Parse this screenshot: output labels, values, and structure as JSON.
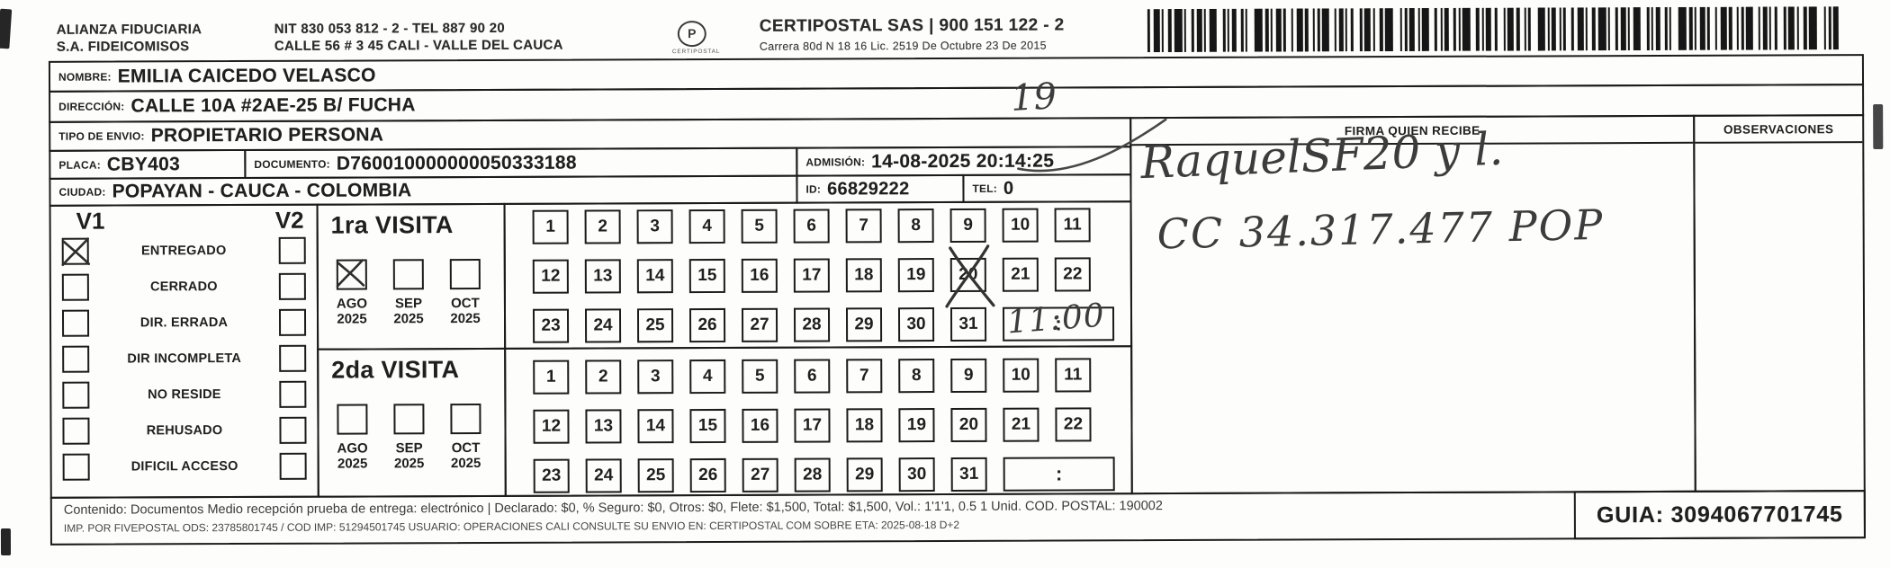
{
  "header": {
    "company": [
      "ALIANZA FIDUCIARIA",
      "S.A. FIDEICOMISOS"
    ],
    "contact": [
      "NIT 830 053 812 - 2 - TEL 887 90 20",
      "CALLE 56 # 3 45  CALI  -  VALLE DEL CAUCA"
    ],
    "logo": {
      "letter": "P",
      "caption": "CERTIPOSTAL"
    },
    "certipostal": [
      "CERTIPOSTAL SAS | 900 151 122 - 2",
      "Carrera 80d N 18 16  Lic. 2519 De Octubre 23 De 2015"
    ]
  },
  "fields": {
    "nombre": {
      "label": "NOMBRE:",
      "value": "EMILIA CAICEDO VELASCO"
    },
    "direccion": {
      "label": "DIRECCIÓN:",
      "value": "CALLE 10A #2AE-25 B/ FUCHA",
      "handwritten": "19"
    },
    "tipo_envio": {
      "label": "TIPO DE ENVIO:",
      "value": "PROPIETARIO PERSONA"
    },
    "placa": {
      "label": "PLACA:",
      "value": "CBY403"
    },
    "documento": {
      "label": "DOCUMENTO:",
      "value": "D760010000000050333188"
    },
    "admision": {
      "label": "ADMISIÓN:",
      "value": "14-08-2025 20:14:25"
    },
    "ciudad": {
      "label": "CIUDAD:",
      "value": "POPAYAN - CAUCA - COLOMBIA"
    },
    "id": {
      "label": "ID:",
      "value": "66829222"
    },
    "tel": {
      "label": "TEL:",
      "value": "0"
    }
  },
  "status": {
    "v1_header": "V1",
    "v2_header": "V2",
    "options": [
      {
        "label": "ENTREGADO",
        "v1": true,
        "v2": false
      },
      {
        "label": "CERRADO",
        "v1": false,
        "v2": false
      },
      {
        "label": "DIR. ERRADA",
        "v1": false,
        "v2": false
      },
      {
        "label": "DIR INCOMPLETA",
        "v1": false,
        "v2": false
      },
      {
        "label": "NO RESIDE",
        "v1": false,
        "v2": false
      },
      {
        "label": "REHUSADO",
        "v1": false,
        "v2": false
      },
      {
        "label": "DIFICIL ACCESO",
        "v1": false,
        "v2": false
      }
    ]
  },
  "visits": [
    {
      "title": "1ra VISITA",
      "months": [
        {
          "month": "AGO",
          "year": "2025",
          "checked": true
        },
        {
          "month": "SEP",
          "year": "2025",
          "checked": false
        },
        {
          "month": "OCT",
          "year": "2025",
          "checked": false
        }
      ],
      "days": [
        1,
        2,
        3,
        4,
        5,
        6,
        7,
        8,
        9,
        10,
        11,
        12,
        13,
        14,
        15,
        16,
        17,
        18,
        19,
        20,
        21,
        22,
        23,
        24,
        25,
        26,
        27,
        28,
        29,
        30,
        31
      ],
      "crossed_day": 20,
      "time": {
        "printed_separator": ":",
        "handwritten": "11:00"
      }
    },
    {
      "title": "2da VISITA",
      "months": [
        {
          "month": "AGO",
          "year": "2025",
          "checked": false
        },
        {
          "month": "SEP",
          "year": "2025",
          "checked": false
        },
        {
          "month": "OCT",
          "year": "2025",
          "checked": false
        }
      ],
      "days": [
        1,
        2,
        3,
        4,
        5,
        6,
        7,
        8,
        9,
        10,
        11,
        12,
        13,
        14,
        15,
        16,
        17,
        18,
        19,
        20,
        21,
        22,
        23,
        24,
        25,
        26,
        27,
        28,
        29,
        30,
        31
      ],
      "crossed_day": null,
      "time": {
        "printed_separator": ":",
        "handwritten": ""
      }
    }
  ],
  "signature": {
    "firma_header": "FIRMA QUIEN RECIBE",
    "observaciones_header": "OBSERVACIONES",
    "lines": [
      "RaquelSF20 y l.",
      "CC 34.317.477 POP"
    ]
  },
  "footer": {
    "line1": "Contenido: Documentos Medio recepción prueba de entrega: electrónico | Declarado: $0, % Seguro: $0, Otros: $0, Flete: $1,500, Total: $1,500, Vol.: 1'1'1, 0.5  1 Unid. COD. POSTAL: 190002",
    "line2": "IMP. POR FIVEPOSTAL ODS: 23785801745 / COD IMP: 51294501745 USUARIO: OPERACIONES CALI CONSULTE SU ENVIO EN: CERTIPOSTAL COM SOBRE ETA: 2025-08-18 D+2",
    "guia": "GUIA: 3094067701745"
  },
  "colors": {
    "ink": "#1f1f1f",
    "pen": "#3c3c3c",
    "paper": "#fdfdfb"
  }
}
